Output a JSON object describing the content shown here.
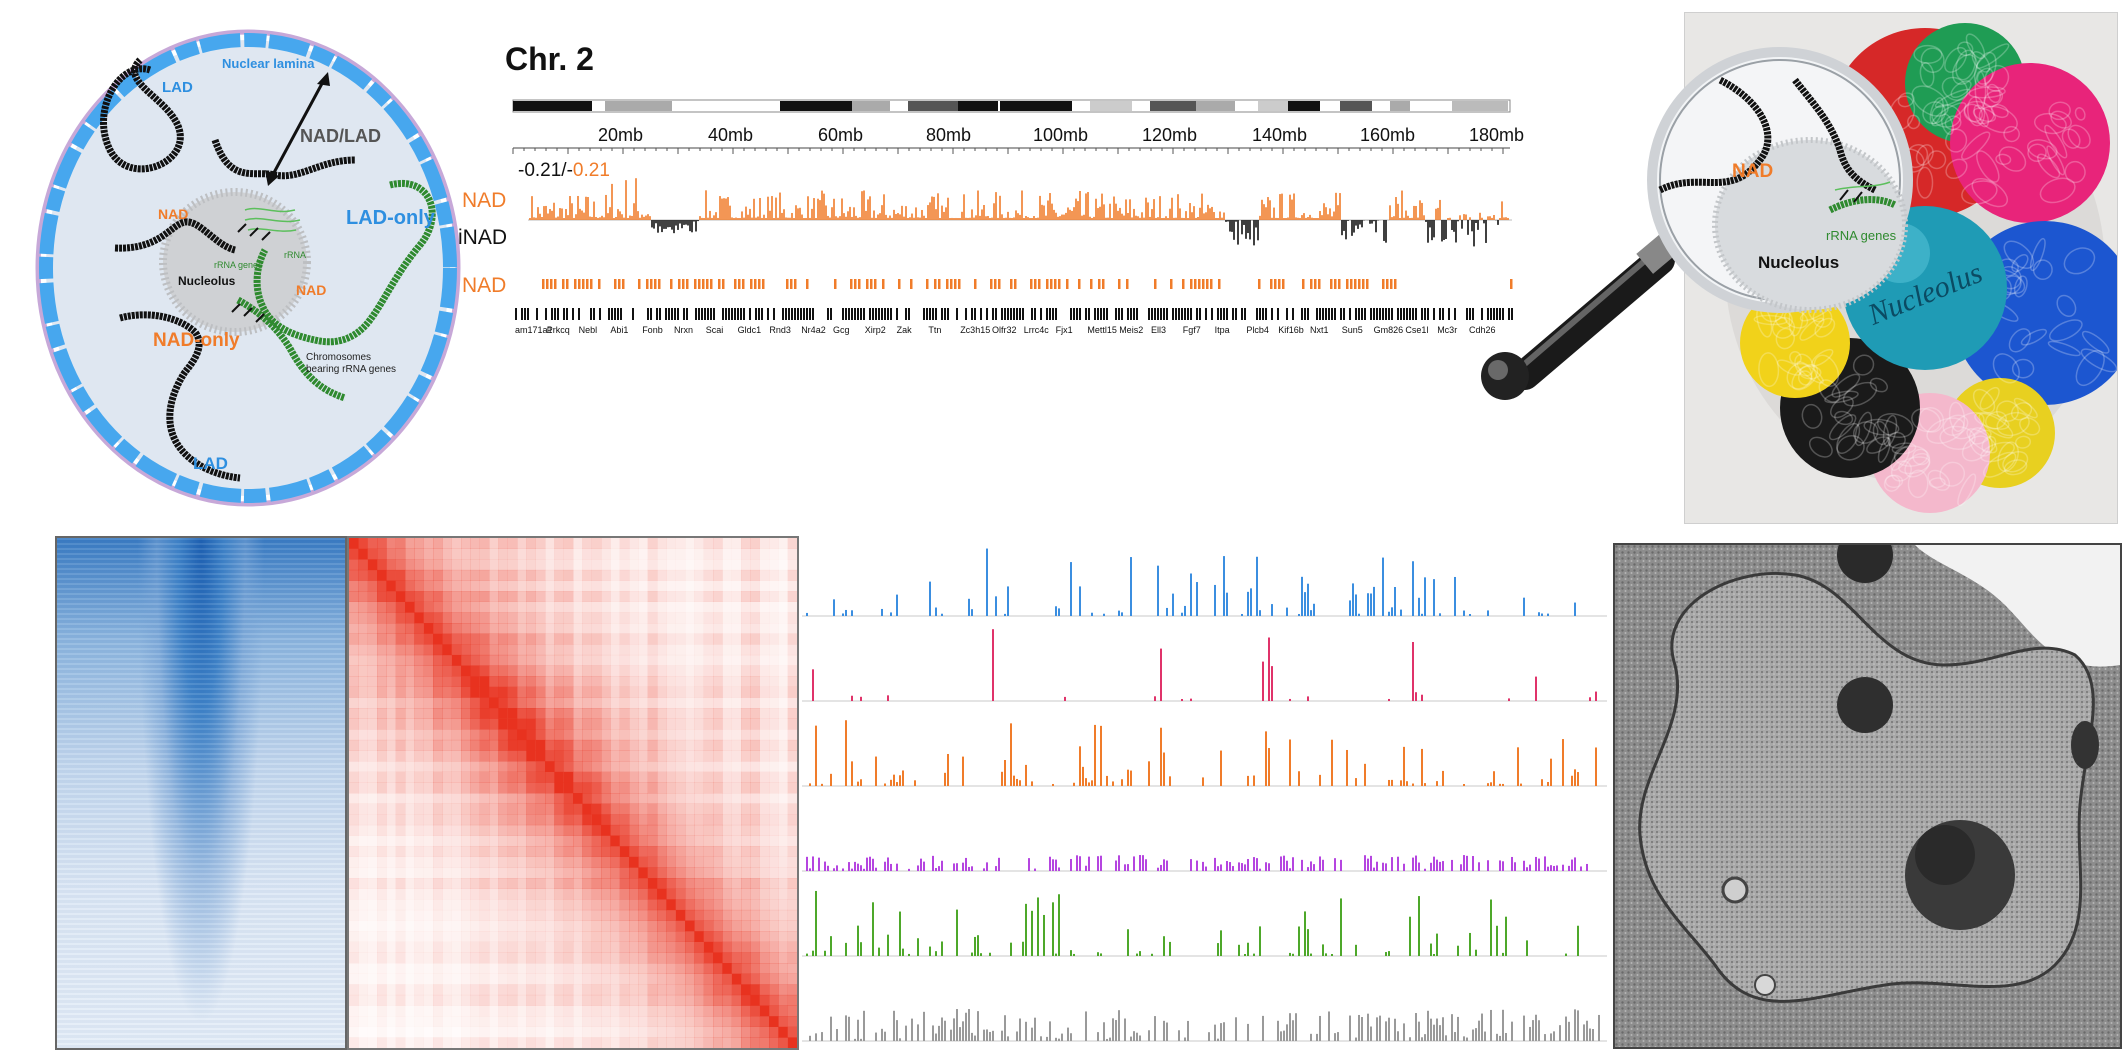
{
  "diagram": {
    "nuclear_lamina": "Nuclear lamina",
    "nad_lad": "NAD/LAD",
    "lad_top": "LAD",
    "lad_bottom": "LAD",
    "nad_left": "NAD",
    "nad_right": "NAD",
    "lad_only": "LAD-only",
    "nad_only": "NAD-only",
    "nucleolus": "Nucleolus",
    "rrna_genes": "rRNA genes",
    "rrna": "rRNA",
    "chromosomes_line1": "Chromosomes",
    "chromosomes_line2": "bearing rRNA genes",
    "colors": {
      "lad": "#2e8fe0",
      "nad": "#f07c2a",
      "rrna_chrom": "#2f8a2f",
      "lamina": "#4aa8ee"
    }
  },
  "genome_browser": {
    "title": "Chr. 2",
    "scale_labels": [
      "20mb",
      "40mb",
      "60mb",
      "80mb",
      "100mb",
      "120mb",
      "140mb",
      "160mb",
      "180mb"
    ],
    "range_neg": "-0.21/-",
    "range_pos": "0.21",
    "track_nad": "NAD",
    "track_inad": "iNAD",
    "track_nad_calls": "NAD",
    "genes": [
      "am171a1",
      "Prkcq",
      "Nebl",
      "Abi1",
      "Fonb",
      "Nrxn",
      "Scai",
      "Gldc1",
      "Rnd3",
      "Nr4a2",
      "Gcg",
      "Xirp2",
      "Zak",
      "Ttn",
      "Zc3h15",
      "Olfr32",
      "Lrrc4c",
      "Fjx1",
      "Mettl15",
      "Meis2",
      "Ell3",
      "Fgf7",
      "Itpa",
      "Plcb4",
      "Kif16b",
      "Nxt1",
      "Sun5",
      "Gm826",
      "Cse1l",
      "Mc3r",
      "Cdh26"
    ],
    "colors": {
      "nad": "#f07c2a",
      "inad": "#111111"
    }
  },
  "magnifier": {
    "nad": "NAD",
    "rrna_genes": "rRNA genes",
    "nucleolus": "Nucleolus"
  },
  "photo": {
    "ball_label": "Nucleolus",
    "colors": {
      "ball": "#1f9bb5"
    }
  },
  "tracks": {
    "colors": [
      "#3b8ee0",
      "#e0336a",
      "#f07c2a",
      "#b545e0",
      "#4ea82a",
      "#9a9a9a"
    ]
  }
}
